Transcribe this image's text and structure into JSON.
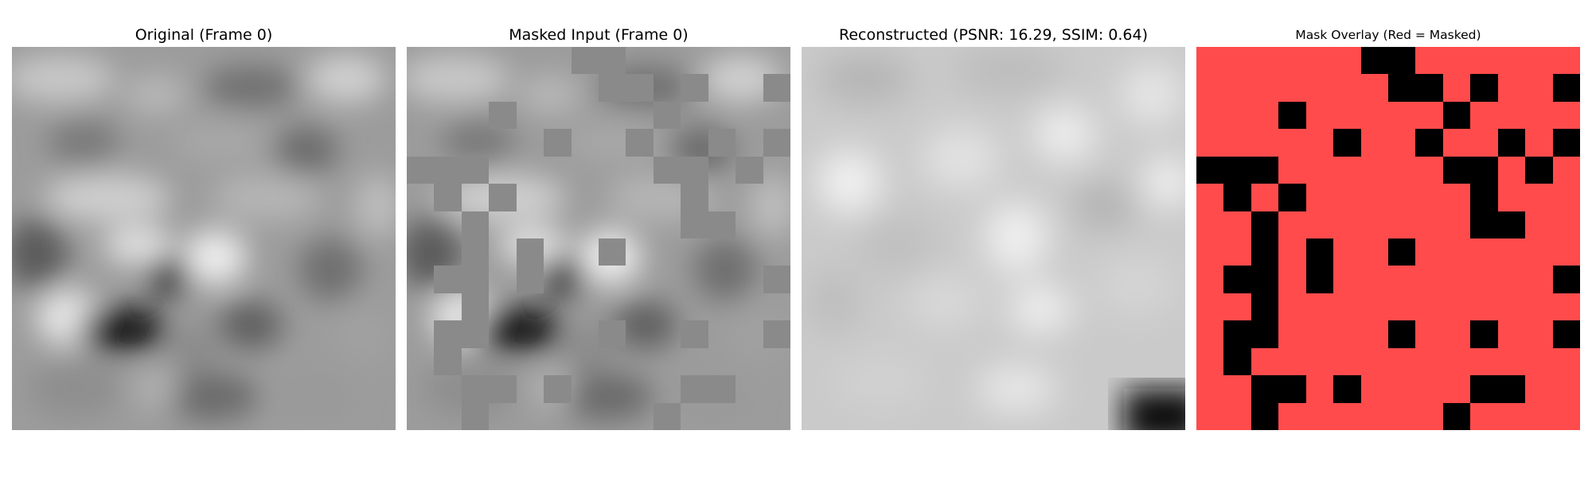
{
  "figure": {
    "panels": [
      {
        "title": "Original (Frame 0)"
      },
      {
        "title": "Masked Input (Frame 0)"
      },
      {
        "title": "Reconstructed (PSNR: 16.29, SSIM: 0.64)"
      },
      {
        "title": "Mask Overlay (Red = Masked)"
      }
    ],
    "grid_size": 14,
    "visible_patches": [
      [
        0,
        6
      ],
      [
        0,
        7
      ],
      [
        1,
        7
      ],
      [
        1,
        8
      ],
      [
        1,
        10
      ],
      [
        1,
        13
      ],
      [
        2,
        3
      ],
      [
        2,
        9
      ],
      [
        3,
        5
      ],
      [
        3,
        8
      ],
      [
        3,
        11
      ],
      [
        3,
        13
      ],
      [
        4,
        0
      ],
      [
        4,
        1
      ],
      [
        4,
        2
      ],
      [
        4,
        9
      ],
      [
        4,
        10
      ],
      [
        4,
        12
      ],
      [
        5,
        1
      ],
      [
        5,
        3
      ],
      [
        5,
        10
      ],
      [
        6,
        2
      ],
      [
        6,
        10
      ],
      [
        6,
        11
      ],
      [
        7,
        2
      ],
      [
        7,
        4
      ],
      [
        7,
        7
      ],
      [
        8,
        1
      ],
      [
        8,
        2
      ],
      [
        8,
        4
      ],
      [
        8,
        13
      ],
      [
        9,
        2
      ],
      [
        10,
        1
      ],
      [
        10,
        2
      ],
      [
        10,
        7
      ],
      [
        10,
        10
      ],
      [
        10,
        13
      ],
      [
        11,
        1
      ],
      [
        12,
        2
      ],
      [
        12,
        3
      ],
      [
        12,
        5
      ],
      [
        12,
        10
      ],
      [
        12,
        11
      ],
      [
        13,
        2
      ],
      [
        13,
        9
      ]
    ],
    "colors": {
      "masked_gray": "#8a8a8a",
      "overlay_red": "#ff4b4b",
      "overlay_visible": "#000000"
    }
  }
}
